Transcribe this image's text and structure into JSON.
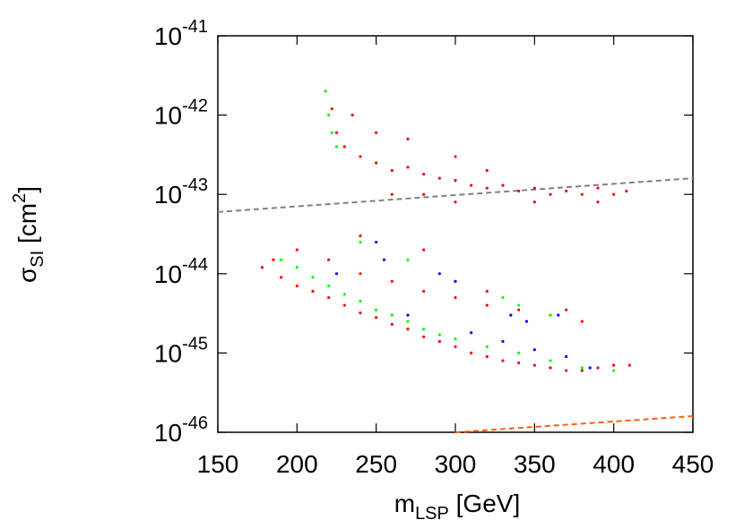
{
  "chart_data": {
    "type": "scatter",
    "x_label": {
      "symbol": "m",
      "sub": "LSP",
      "rest": " [GeV]"
    },
    "y_label": {
      "symbol": "σ",
      "sub": "SI",
      "rest": " [cm",
      "sup": "2",
      "end": "]"
    },
    "log_y": true,
    "xlim": [
      150,
      450
    ],
    "xticks": [
      150,
      200,
      250,
      300,
      350,
      400,
      450
    ],
    "ylim": [
      1e-46,
      1e-41
    ],
    "yticks": [
      {
        "value": 1e-46,
        "base": "10",
        "exponent": "-46"
      },
      {
        "value": 1e-45,
        "base": "10",
        "exponent": "-45"
      },
      {
        "value": 1e-44,
        "base": "10",
        "exponent": "-44"
      },
      {
        "value": 1e-43,
        "base": "10",
        "exponent": "-43"
      },
      {
        "value": 1e-42,
        "base": "10",
        "exponent": "-42"
      },
      {
        "value": 1e-41,
        "base": "10",
        "exponent": "-41"
      }
    ],
    "series": [
      {
        "color": "#ff0000",
        "x": [
          218,
          222,
          225,
          230,
          240,
          250,
          260,
          270,
          280,
          290,
          300,
          310,
          320,
          330,
          340,
          350,
          360,
          370,
          380,
          390,
          400,
          408,
          260,
          300,
          350,
          390,
          270,
          300,
          250,
          235,
          280,
          320,
          178,
          185,
          190,
          200,
          210,
          220,
          230,
          240,
          250,
          260,
          270,
          280,
          290,
          300,
          310,
          320,
          330,
          340,
          350,
          360,
          370,
          380,
          390,
          400,
          410,
          200,
          220,
          240,
          260,
          280,
          300,
          320,
          340,
          360,
          380,
          240,
          280,
          320,
          370
        ],
        "y": [
          2e-42,
          1.2e-42,
          6e-43,
          4e-43,
          3e-43,
          2.5e-43,
          2e-43,
          2.2e-43,
          1.8e-43,
          1.6e-43,
          1.5e-43,
          1.3e-43,
          1.2e-43,
          1.3e-43,
          1.1e-43,
          1.2e-43,
          1e-43,
          1.1e-43,
          1e-43,
          1.2e-43,
          1e-43,
          1.1e-43,
          1e-43,
          8e-44,
          8e-44,
          8e-44,
          5e-43,
          3e-43,
          6e-43,
          1e-42,
          1e-43,
          2e-43,
          1.2e-44,
          1.5e-44,
          9e-45,
          7e-45,
          6e-45,
          5e-45,
          4e-45,
          3.2e-45,
          2.8e-45,
          2.3e-45,
          2e-45,
          1.6e-45,
          1.4e-45,
          1.2e-45,
          1e-45,
          9e-46,
          8e-46,
          7.5e-46,
          7e-46,
          6.5e-46,
          6e-46,
          6e-46,
          6.5e-46,
          7e-46,
          7e-46,
          2e-44,
          1.5e-44,
          1e-44,
          8e-45,
          6e-45,
          5e-45,
          4e-45,
          3.5e-45,
          3e-45,
          2.5e-45,
          3e-44,
          2e-44,
          6e-45,
          3.5e-45
        ]
      },
      {
        "color": "#00ff00",
        "x": [
          218,
          220,
          222,
          225,
          190,
          200,
          210,
          220,
          230,
          240,
          250,
          260,
          270,
          280,
          290,
          300,
          320,
          340,
          360,
          380,
          400,
          240,
          270,
          300,
          330,
          360,
          340
        ],
        "y": [
          2e-42,
          1e-42,
          6e-43,
          4e-43,
          1.5e-44,
          1.2e-44,
          9e-45,
          7e-45,
          5.5e-45,
          4.5e-45,
          3.5e-45,
          3e-45,
          2.5e-45,
          2e-45,
          1.7e-45,
          1.5e-45,
          1.2e-45,
          1e-45,
          8e-46,
          6.5e-46,
          6e-46,
          2.5e-44,
          1.5e-44,
          8e-45,
          5e-45,
          3e-45,
          4e-45
        ]
      },
      {
        "color": "#0000ff",
        "x": [
          250,
          255,
          290,
          300,
          335,
          345,
          270,
          310,
          330,
          350,
          370,
          385,
          365,
          225
        ],
        "y": [
          2.5e-44,
          1.5e-44,
          1e-44,
          8e-45,
          3e-45,
          2.5e-45,
          3e-45,
          1.8e-45,
          1.4e-45,
          1.1e-45,
          9e-46,
          6.5e-46,
          3e-45,
          1e-44
        ]
      }
    ],
    "lines": [
      {
        "color": "#808080",
        "x": [
          150,
          450
        ],
        "y": [
          6e-44,
          1.6e-43
        ]
      },
      {
        "color": "#ff6010",
        "x": [
          300,
          450
        ],
        "y": [
          1e-46,
          1.6e-46
        ]
      }
    ]
  }
}
